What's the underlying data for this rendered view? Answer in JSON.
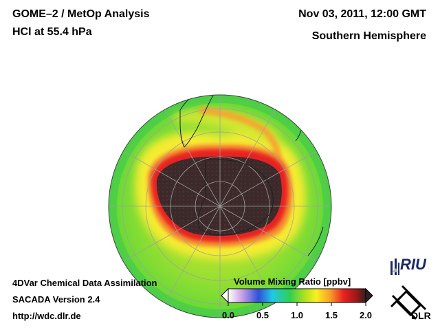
{
  "header": {
    "title_line1": "GOME–2 / MetOp Analysis",
    "title_line2": "HCl at 55.4 hPa",
    "date": "Nov 03, 2011, 12:00 GMT",
    "region": "Southern Hemisphere"
  },
  "footer": {
    "line1": "4DVar Chemical Data Assimilation",
    "line2": "SACADA Version 2.4",
    "line3": "http://wdc.dlr.de"
  },
  "colorbar": {
    "title": "Volume Mixing Ratio [ppbv]",
    "min": 0.0,
    "max": 2.0,
    "ticks": [
      "0.0",
      "0.5",
      "1.0",
      "1.5",
      "2.0"
    ],
    "colors": [
      "#ffffff",
      "#c8a0e8",
      "#3050d8",
      "#20c8e8",
      "#30d050",
      "#a8e020",
      "#f8f020",
      "#f8a028",
      "#e82020",
      "#a01818",
      "#302020"
    ]
  },
  "logos": {
    "riu": "RIU",
    "dlr": "DLR"
  },
  "map": {
    "projection": "orthographic-south-polar",
    "background_level_ppbv": 1.1,
    "vortex_core_ppbv": 2.1,
    "vortex_edge_ppbv": 1.8
  }
}
